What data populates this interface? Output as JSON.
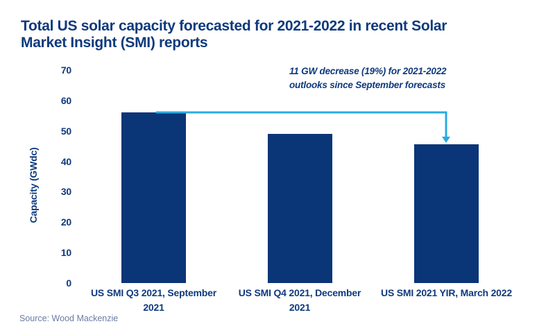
{
  "title": {
    "text": "Total US solar capacity forecasted for 2021-2022 in recent Solar Market Insight (SMI) reports",
    "lines": [
      "Total US solar capacity forecasted for 2021-2022 in recent Solar",
      "Market Insight (SMI) reports"
    ]
  },
  "annotation": {
    "text": "11 GW decrease (19%) for 2021-2022 outlooks since September forecasts",
    "lines": [
      "11 GW decrease (19%) for 2021-2022",
      "outlooks since September forecasts"
    ]
  },
  "source": "Source: Wood Mackenzie",
  "colors": {
    "navy_text": "#0e3a7d",
    "bar_fill": "#0a3577",
    "arrow_cyan": "#29abe2",
    "source_text": "#6a7ca3",
    "background": "#ffffff"
  },
  "chart_data": {
    "type": "bar",
    "title": "Total US solar capacity forecasted for 2021-2022 in recent Solar Market Insight (SMI) reports",
    "categories": [
      "US SMI Q3 2021, September 2021",
      "US SMI Q4 2021, December 2021",
      "US SMI 2021 YIR, March 2022"
    ],
    "category_lines": [
      [
        "US SMI Q3 2021, September",
        "2021"
      ],
      [
        "US SMI Q4 2021, December",
        "2021"
      ],
      [
        "US SMI 2021 YIR, March 2022"
      ]
    ],
    "values": [
      56.2,
      49.1,
      45.5
    ],
    "xlabel": "",
    "ylabel": "Capacity (GWdc)",
    "yticks": [
      0,
      10,
      20,
      30,
      40,
      50,
      60,
      70
    ],
    "ylim": [
      0,
      70
    ],
    "grid": false,
    "legend": false,
    "annotation": "11 GW decrease (19%) for 2021-2022 outlooks since September forecasts",
    "source": "Source: Wood Mackenzie"
  }
}
